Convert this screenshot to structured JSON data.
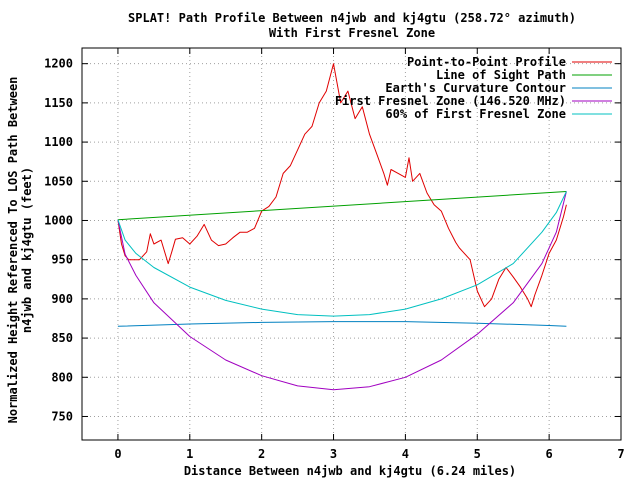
{
  "chart_data": {
    "type": "line",
    "title": "SPLAT! Path Profile Between n4jwb and kj4gtu (258.72° azimuth)",
    "subtitle": "With First Fresnel Zone",
    "xlabel": "Distance Between n4jwb and kj4gtu (6.24 miles)",
    "ylabel": [
      "Normalized Height Referenced To LOS Path Between",
      "n4jwb and kj4gtu (feet)"
    ],
    "xlim": [
      -0.5,
      7
    ],
    "ylim": [
      720,
      1220
    ],
    "x_ticks": [
      "0",
      "1",
      "2",
      "3",
      "4",
      "5",
      "6",
      "7"
    ],
    "y_ticks": [
      "750",
      "800",
      "850",
      "900",
      "950",
      "1000",
      "1050",
      "1100",
      "1150",
      "1200"
    ],
    "grid": true,
    "legend_position": "top-right",
    "series": [
      {
        "name": "Point-to-Point Profile",
        "color": "#e00000",
        "points": [
          [
            0,
            1001
          ],
          [
            0.05,
            970
          ],
          [
            0.1,
            955
          ],
          [
            0.15,
            950
          ],
          [
            0.2,
            950
          ],
          [
            0.3,
            950
          ],
          [
            0.4,
            960
          ],
          [
            0.45,
            983
          ],
          [
            0.5,
            970
          ],
          [
            0.6,
            975
          ],
          [
            0.7,
            945
          ],
          [
            0.75,
            960
          ],
          [
            0.8,
            976
          ],
          [
            0.9,
            978
          ],
          [
            1.0,
            970
          ],
          [
            1.1,
            980
          ],
          [
            1.2,
            995
          ],
          [
            1.3,
            975
          ],
          [
            1.4,
            968
          ],
          [
            1.5,
            970
          ],
          [
            1.6,
            978
          ],
          [
            1.7,
            985
          ],
          [
            1.8,
            985
          ],
          [
            1.9,
            990
          ],
          [
            2.0,
            1012
          ],
          [
            2.1,
            1018
          ],
          [
            2.2,
            1030
          ],
          [
            2.3,
            1060
          ],
          [
            2.4,
            1070
          ],
          [
            2.5,
            1090
          ],
          [
            2.6,
            1110
          ],
          [
            2.7,
            1120
          ],
          [
            2.8,
            1150
          ],
          [
            2.9,
            1165
          ],
          [
            3.0,
            1200
          ],
          [
            3.1,
            1150
          ],
          [
            3.2,
            1165
          ],
          [
            3.3,
            1130
          ],
          [
            3.4,
            1145
          ],
          [
            3.5,
            1110
          ],
          [
            3.6,
            1085
          ],
          [
            3.7,
            1060
          ],
          [
            3.75,
            1045
          ],
          [
            3.8,
            1065
          ],
          [
            3.9,
            1060
          ],
          [
            4.0,
            1055
          ],
          [
            4.05,
            1080
          ],
          [
            4.1,
            1050
          ],
          [
            4.2,
            1060
          ],
          [
            4.3,
            1035
          ],
          [
            4.4,
            1020
          ],
          [
            4.5,
            1012
          ],
          [
            4.6,
            990
          ],
          [
            4.7,
            972
          ],
          [
            4.75,
            965
          ],
          [
            4.8,
            960
          ],
          [
            4.9,
            950
          ],
          [
            5.0,
            910
          ],
          [
            5.1,
            890
          ],
          [
            5.2,
            900
          ],
          [
            5.3,
            925
          ],
          [
            5.4,
            940
          ],
          [
            5.5,
            928
          ],
          [
            5.6,
            915
          ],
          [
            5.7,
            900
          ],
          [
            5.75,
            890
          ],
          [
            5.8,
            905
          ],
          [
            5.9,
            930
          ],
          [
            6.0,
            958
          ],
          [
            6.1,
            975
          ],
          [
            6.2,
            1005
          ],
          [
            6.24,
            1020
          ]
        ]
      },
      {
        "name": "Line of Sight Path",
        "color": "#00a000",
        "points": [
          [
            0,
            1001
          ],
          [
            6.24,
            1037
          ]
        ]
      },
      {
        "name": "Earth's Curvature Contour",
        "color": "#0080c0",
        "points": [
          [
            0,
            865
          ],
          [
            1,
            868
          ],
          [
            2,
            870
          ],
          [
            3,
            871
          ],
          [
            4,
            871
          ],
          [
            5,
            869
          ],
          [
            6,
            866
          ],
          [
            6.24,
            865
          ]
        ]
      },
      {
        "name": "First Fresnel Zone (146.520 MHz)",
        "color": "#a000c0",
        "points": [
          [
            0,
            1001
          ],
          [
            0.1,
            957
          ],
          [
            0.25,
            930
          ],
          [
            0.5,
            895
          ],
          [
            1,
            852
          ],
          [
            1.5,
            822
          ],
          [
            2,
            802
          ],
          [
            2.5,
            789
          ],
          [
            3,
            784
          ],
          [
            3.5,
            788
          ],
          [
            4,
            800
          ],
          [
            4.5,
            822
          ],
          [
            5,
            855
          ],
          [
            5.5,
            895
          ],
          [
            5.9,
            945
          ],
          [
            6.1,
            985
          ],
          [
            6.24,
            1037
          ]
        ]
      },
      {
        "name": "60% of First Fresnel Zone",
        "color": "#00c0c0",
        "points": [
          [
            0,
            1001
          ],
          [
            0.1,
            975
          ],
          [
            0.25,
            958
          ],
          [
            0.5,
            940
          ],
          [
            1,
            915
          ],
          [
            1.5,
            898
          ],
          [
            2,
            887
          ],
          [
            2.5,
            880
          ],
          [
            3,
            878
          ],
          [
            3.5,
            880
          ],
          [
            4,
            887
          ],
          [
            4.5,
            900
          ],
          [
            5,
            918
          ],
          [
            5.5,
            945
          ],
          [
            5.9,
            985
          ],
          [
            6.1,
            1010
          ],
          [
            6.24,
            1037
          ]
        ]
      }
    ]
  }
}
